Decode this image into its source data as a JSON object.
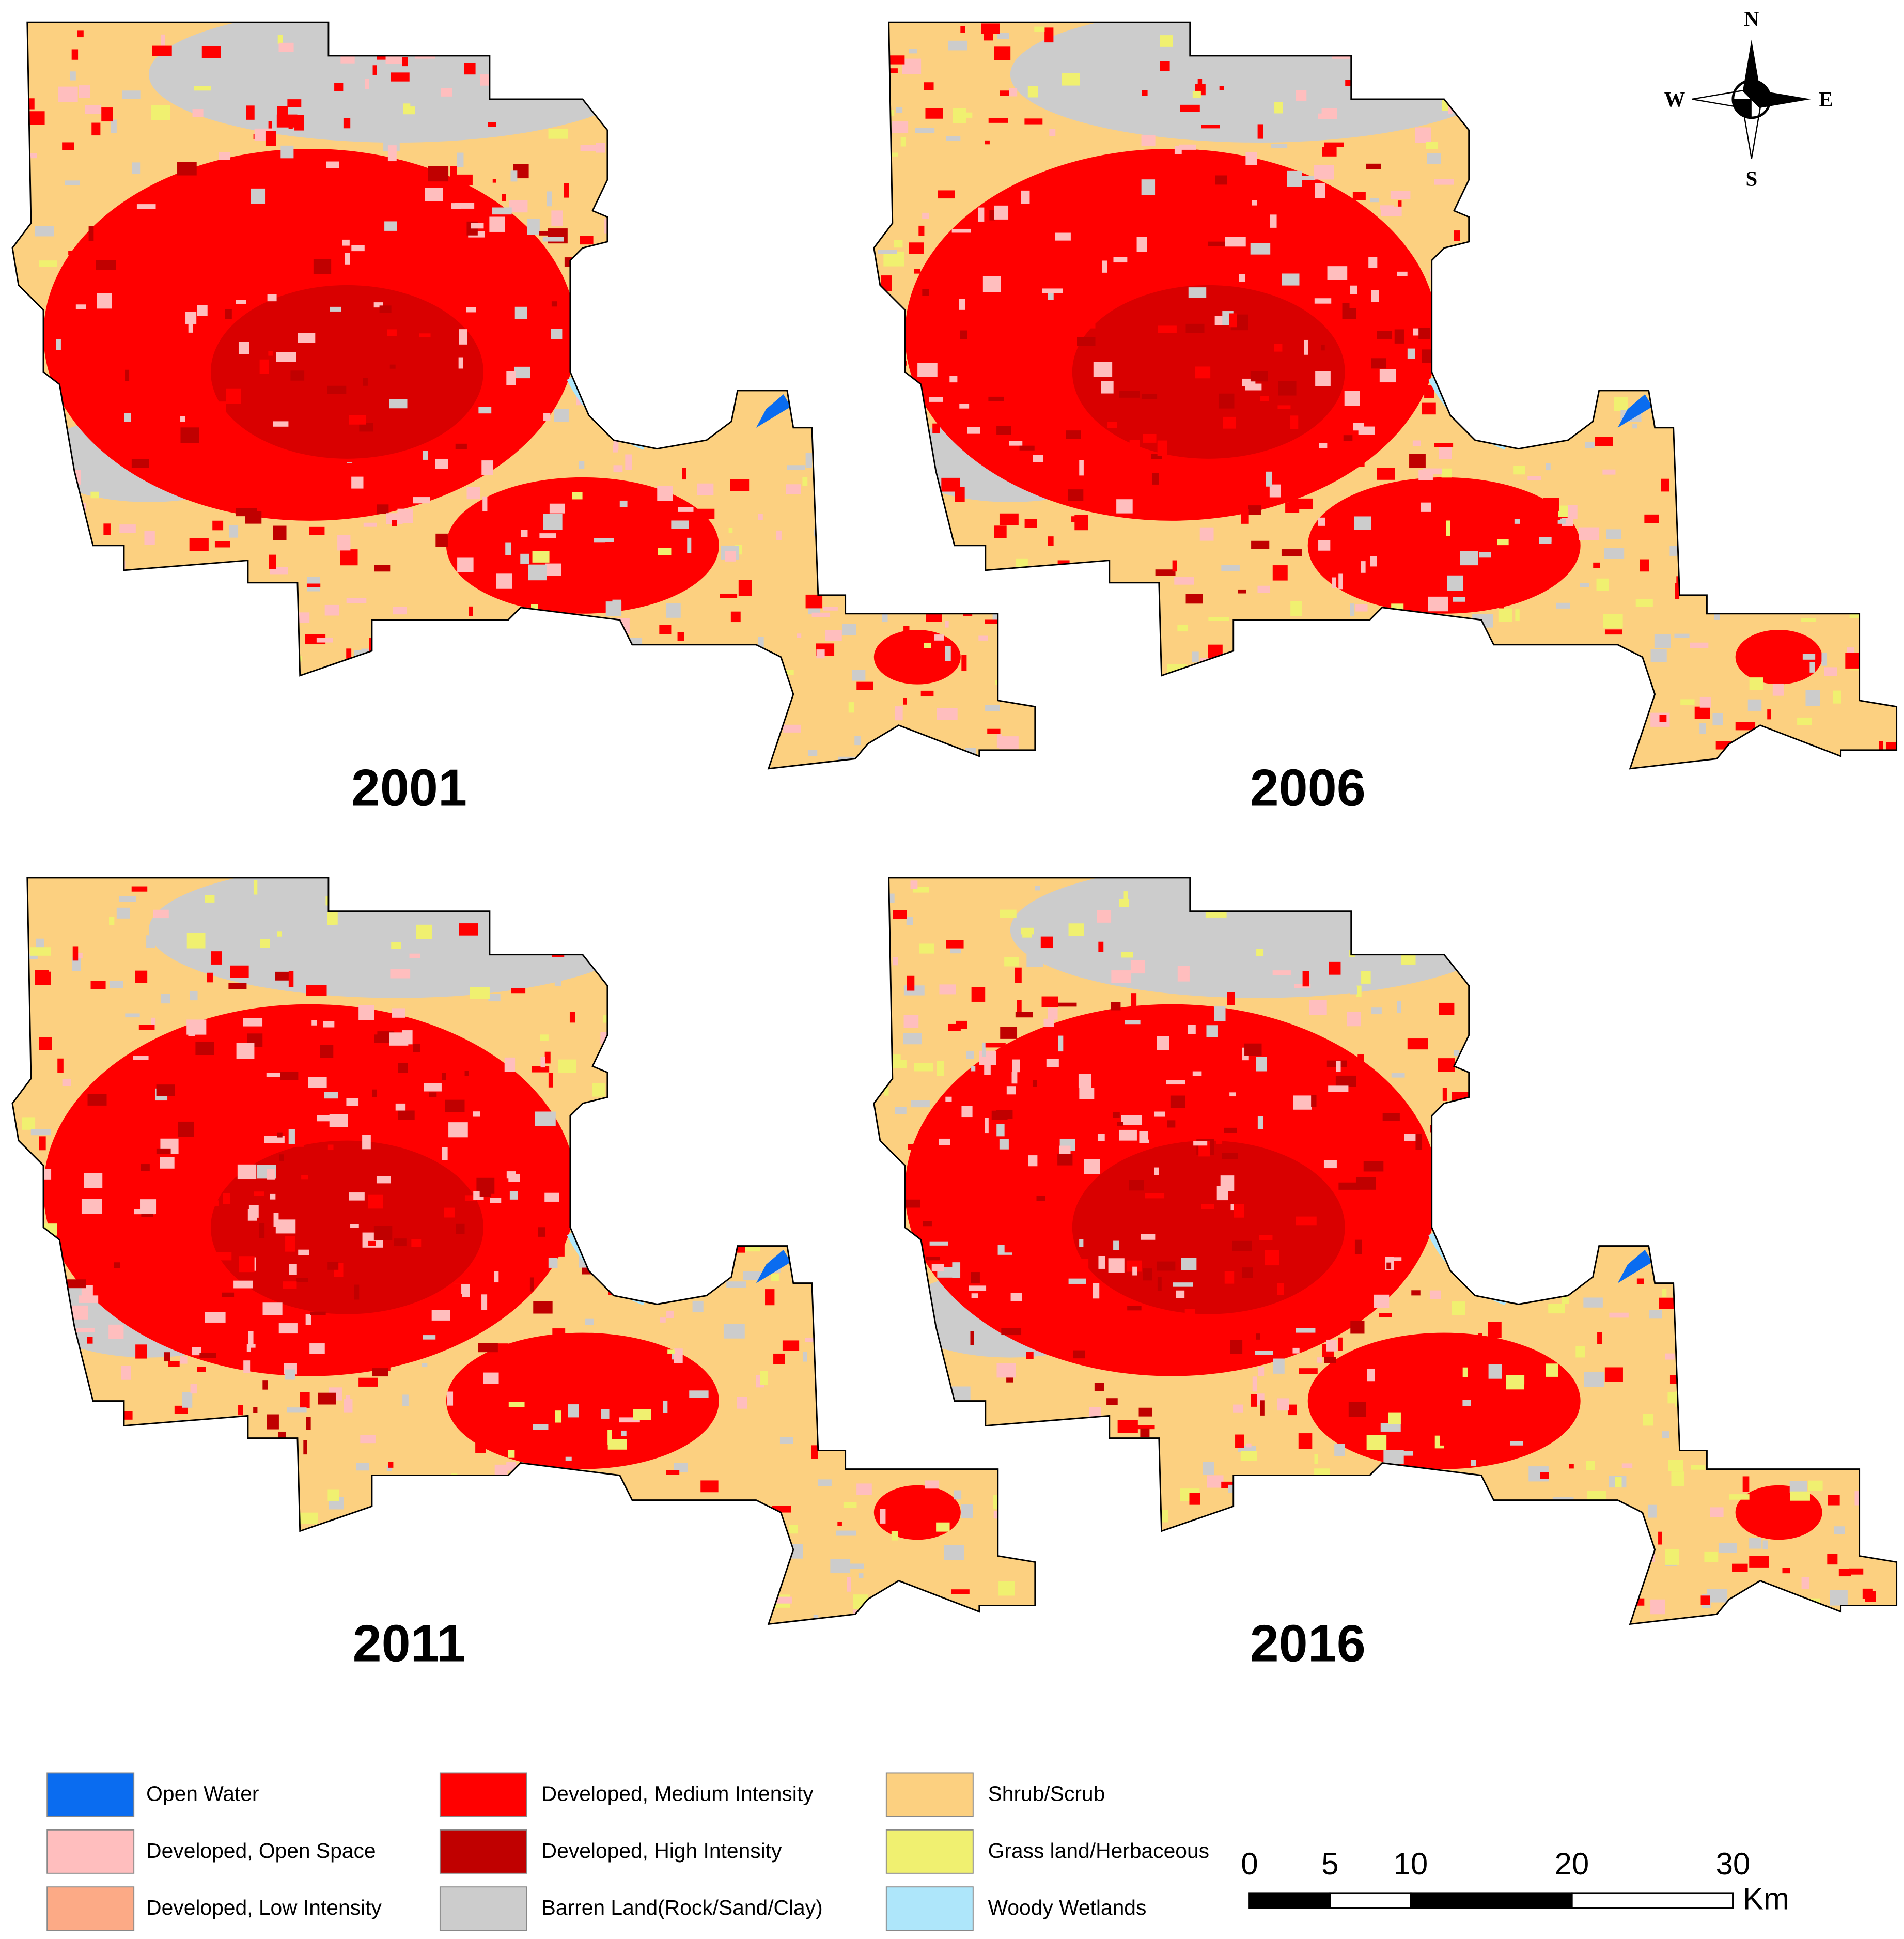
{
  "panels": [
    {
      "year": "2001"
    },
    {
      "year": "2006"
    },
    {
      "year": "2011"
    },
    {
      "year": "2016"
    }
  ],
  "compass": {
    "n": "N",
    "s": "S",
    "e": "E",
    "w": "W"
  },
  "legend": {
    "items": [
      {
        "label": "Open Water",
        "color": "#0a6cf0"
      },
      {
        "label": "Developed, Open Space",
        "color": "#ffbebe"
      },
      {
        "label": "Developed, Low Intensity",
        "color": "#fcaa86"
      },
      {
        "label": "Developed, Medium Intensity",
        "color": "#ff0000"
      },
      {
        "label": "Developed, High Intensity",
        "color": "#c00000"
      },
      {
        "label": "Barren Land(Rock/Sand/Clay)",
        "color": "#cccccc"
      },
      {
        "label": "Shrub/Scrub",
        "color": "#fcd080"
      },
      {
        "label": "Grass land/Herbaceous",
        "color": "#f0f070"
      },
      {
        "label": "Woody Wetlands",
        "color": "#aee6fa"
      }
    ]
  },
  "scale_bar": {
    "ticks": [
      0,
      5,
      10,
      20,
      30
    ],
    "unit": "Km"
  }
}
